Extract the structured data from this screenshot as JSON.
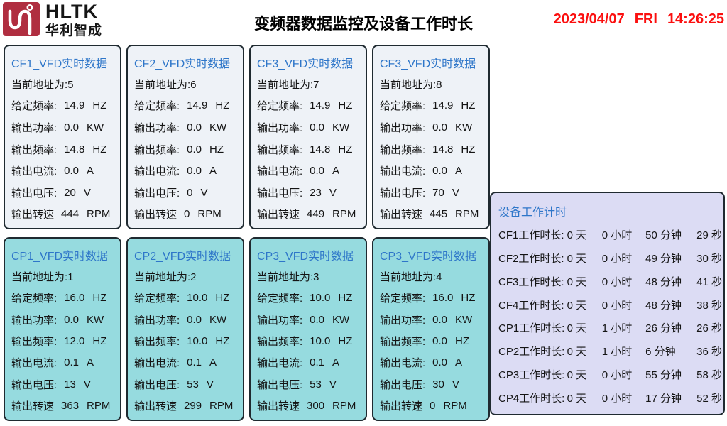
{
  "brand": {
    "name": "HLTK",
    "subtitle": "华利智成",
    "logo_color": "#b02e40"
  },
  "header": {
    "title": "变频器数据监控及设备工作时长",
    "date": "2023/04/07",
    "weekday": "FRI",
    "time": "14:26:25",
    "clock_color": "#fb0f0f",
    "title_blue": "#2e76c9"
  },
  "panels": [
    {
      "title": "CF1_VFD实时数据",
      "address": "当前地址为:5",
      "rows": [
        {
          "label": "给定频率:",
          "value": "14.9",
          "unit": "HZ"
        },
        {
          "label": "输出功率:",
          "value": "0.0",
          "unit": "KW"
        },
        {
          "label": "输出频率:",
          "value": "14.8",
          "unit": "HZ"
        },
        {
          "label": "输出电流:",
          "value": "0.0",
          "unit": "A"
        },
        {
          "label": "输出电压:",
          "value": "20",
          "unit": "V"
        },
        {
          "label": "输出转速",
          "value": "444",
          "unit": "RPM"
        }
      ]
    },
    {
      "title": "CF2_VFD实时数据",
      "address": "当前地址为:6",
      "rows": [
        {
          "label": "给定频率:",
          "value": "14.9",
          "unit": "HZ"
        },
        {
          "label": "输出功率:",
          "value": "0.0",
          "unit": "KW"
        },
        {
          "label": "输出频率:",
          "value": "0.0",
          "unit": "HZ"
        },
        {
          "label": "输出电流:",
          "value": "0.0",
          "unit": "A"
        },
        {
          "label": "输出电压:",
          "value": "0",
          "unit": "V"
        },
        {
          "label": "输出转速",
          "value": "0",
          "unit": "RPM"
        }
      ]
    },
    {
      "title": "CF3_VFD实时数据",
      "address": "当前地址为:7",
      "rows": [
        {
          "label": "给定频率:",
          "value": "14.9",
          "unit": "HZ"
        },
        {
          "label": "输出功率:",
          "value": "0.0",
          "unit": "KW"
        },
        {
          "label": "输出频率:",
          "value": "14.8",
          "unit": "HZ"
        },
        {
          "label": "输出电流:",
          "value": "0.0",
          "unit": "A"
        },
        {
          "label": "输出电压:",
          "value": "23",
          "unit": "V"
        },
        {
          "label": "输出转速",
          "value": "449",
          "unit": "RPM"
        }
      ]
    },
    {
      "title": "CF3_VFD实时数据",
      "address": "当前地址为:8",
      "rows": [
        {
          "label": "给定频率:",
          "value": "14.9",
          "unit": "HZ"
        },
        {
          "label": "输出功率:",
          "value": "0.0",
          "unit": "KW"
        },
        {
          "label": "输出频率:",
          "value": "14.8",
          "unit": "HZ"
        },
        {
          "label": "输出电流:",
          "value": "0.0",
          "unit": "A"
        },
        {
          "label": "输出电压:",
          "value": "70",
          "unit": "V"
        },
        {
          "label": "输出转速",
          "value": "445",
          "unit": "RPM"
        }
      ]
    },
    {
      "title": "CP1_VFD实时数据",
      "address": "当前地址为:1",
      "rows": [
        {
          "label": "给定频率:",
          "value": "16.0",
          "unit": "HZ"
        },
        {
          "label": "输出功率:",
          "value": "0.0",
          "unit": "KW"
        },
        {
          "label": "输出频率:",
          "value": "12.0",
          "unit": "HZ"
        },
        {
          "label": "输出电流:",
          "value": "0.1",
          "unit": "A"
        },
        {
          "label": "输出电压:",
          "value": "13",
          "unit": "V"
        },
        {
          "label": "输出转速",
          "value": "363",
          "unit": "RPM"
        }
      ]
    },
    {
      "title": "CP2_VFD实时数据",
      "address": "当前地址为:2",
      "rows": [
        {
          "label": "给定频率:",
          "value": "10.0",
          "unit": "HZ"
        },
        {
          "label": "输出功率:",
          "value": "0.0",
          "unit": "KW"
        },
        {
          "label": "输出频率:",
          "value": "10.0",
          "unit": "HZ"
        },
        {
          "label": "输出电流:",
          "value": "0.1",
          "unit": "A"
        },
        {
          "label": "输出电压:",
          "value": "53",
          "unit": "V"
        },
        {
          "label": "输出转速",
          "value": "299",
          "unit": "RPM"
        }
      ]
    },
    {
      "title": "CP3_VFD实时数据",
      "address": "当前地址为:3",
      "rows": [
        {
          "label": "给定频率:",
          "value": "10.0",
          "unit": "HZ"
        },
        {
          "label": "输出功率:",
          "value": "0.0",
          "unit": "KW"
        },
        {
          "label": "输出频率:",
          "value": "10.0",
          "unit": "HZ"
        },
        {
          "label": "输出电流:",
          "value": "0.1",
          "unit": "A"
        },
        {
          "label": "输出电压:",
          "value": "53",
          "unit": "V"
        },
        {
          "label": "输出转速",
          "value": "300",
          "unit": "RPM"
        }
      ]
    },
    {
      "title": "CP3_VFD实时数据",
      "address": "当前地址为:4",
      "rows": [
        {
          "label": "给定频率:",
          "value": "16.0",
          "unit": "HZ"
        },
        {
          "label": "输出功率:",
          "value": "0.0",
          "unit": "KW"
        },
        {
          "label": "输出频率:",
          "value": "0.0",
          "unit": "HZ"
        },
        {
          "label": "输出电流:",
          "value": "0.0",
          "unit": "A"
        },
        {
          "label": "输出电压:",
          "value": "30",
          "unit": "V"
        },
        {
          "label": "输出转速",
          "value": "0",
          "unit": "RPM"
        }
      ]
    }
  ],
  "timer_panel": {
    "title": "设备工作计时",
    "rows": [
      {
        "label": "CF1工作时长:",
        "days": "0 天",
        "hours": "0 小时",
        "minutes": "50 分钟",
        "seconds": "29 秒"
      },
      {
        "label": "CF2工作时长:",
        "days": "0 天",
        "hours": "0 小时",
        "minutes": "49 分钟",
        "seconds": "30 秒"
      },
      {
        "label": "CF3工作时长:",
        "days": "0 天",
        "hours": "0 小时",
        "minutes": "48 分钟",
        "seconds": "41 秒"
      },
      {
        "label": "CF4工作时长:",
        "days": "0 天",
        "hours": "0 小时",
        "minutes": "48 分钟",
        "seconds": "38 秒"
      },
      {
        "label": "CP1工作时长:",
        "days": "0 天",
        "hours": "1 小时",
        "minutes": "26 分钟",
        "seconds": "26 秒"
      },
      {
        "label": "CP2工作时长:",
        "days": "0 天",
        "hours": "1 小时",
        "minutes": "6 分钟",
        "seconds": "36 秒"
      },
      {
        "label": "CP3工作时长:",
        "days": "0 天",
        "hours": "0 小时",
        "minutes": "55 分钟",
        "seconds": "58 秒"
      },
      {
        "label": "CP4工作时长:",
        "days": "0 天",
        "hours": "0 小时",
        "minutes": "17 分钟",
        "seconds": "52 秒"
      }
    ]
  }
}
